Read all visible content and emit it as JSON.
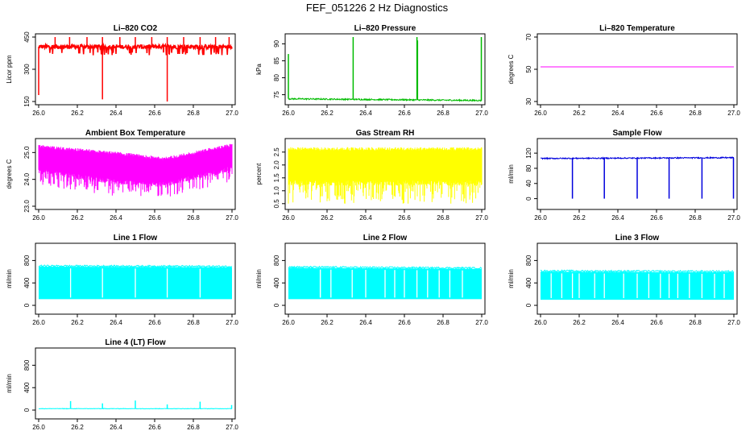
{
  "figure_title": "FEF_051226  2 Hz Diagnostics",
  "chart_data": [
    {
      "type": "line",
      "title": "Li–820 CO2",
      "ylabel": "Licor ppm",
      "xlim": [
        26.0,
        27.0
      ],
      "ylim": [
        150,
        450
      ],
      "xticks": [
        26.0,
        26.2,
        26.4,
        26.6,
        26.8,
        27.0
      ],
      "xtick_labels": [
        "26.0",
        "26.2",
        "26.4",
        "26.6",
        "26.8",
        "27.0"
      ],
      "yticks": [
        150,
        300,
        450
      ],
      "ytick_labels": [
        "150",
        "300",
        "450"
      ],
      "color": "#ff0000",
      "style": "noisy",
      "base": [
        405,
        405
      ],
      "noise": 10,
      "floor_val": 380,
      "floor_frac": 0.08,
      "spikes": [
        {
          "x": 26.0,
          "v": 180
        },
        {
          "x": 26.085,
          "v": 480
        },
        {
          "x": 26.16,
          "v": 480
        },
        {
          "x": 26.25,
          "v": 480
        },
        {
          "x": 26.33,
          "v": 160
        },
        {
          "x": 26.33,
          "v": 480
        },
        {
          "x": 26.42,
          "v": 480
        },
        {
          "x": 26.5,
          "v": 480
        },
        {
          "x": 26.585,
          "v": 480
        },
        {
          "x": 26.665,
          "v": 150
        },
        {
          "x": 26.665,
          "v": 480
        },
        {
          "x": 26.75,
          "v": 480
        },
        {
          "x": 26.835,
          "v": 480
        },
        {
          "x": 26.915,
          "v": 480
        },
        {
          "x": 26.985,
          "v": 480
        }
      ]
    },
    {
      "type": "line",
      "title": "Li–820 Pressure",
      "ylabel": "kPa",
      "xlim": [
        26.0,
        27.0
      ],
      "ylim": [
        73,
        92
      ],
      "xticks": [
        26.0,
        26.2,
        26.4,
        26.6,
        26.8,
        27.0
      ],
      "xtick_labels": [
        "26.0",
        "26.2",
        "26.4",
        "26.6",
        "26.8",
        "27.0"
      ],
      "yticks": [
        75,
        80,
        85,
        90
      ],
      "ytick_labels": [
        "75",
        "80",
        "85",
        "90"
      ],
      "color": "#00bb00",
      "style": "line",
      "base": [
        73.8,
        73.3
      ],
      "noise": 0.2,
      "spikes": [
        {
          "x": 26.0,
          "v": 87
        },
        {
          "x": 26.335,
          "v": 93
        },
        {
          "x": 26.665,
          "v": 93
        },
        {
          "x": 26.668,
          "v": 91
        },
        {
          "x": 26.998,
          "v": 92
        }
      ]
    },
    {
      "type": "line",
      "title": "Li–820 Temperature",
      "ylabel": "degrees C",
      "xlim": [
        26.0,
        27.0
      ],
      "ylim": [
        30,
        70
      ],
      "xticks": [
        26.0,
        26.2,
        26.4,
        26.6,
        26.8,
        27.0
      ],
      "xtick_labels": [
        "26.0",
        "26.2",
        "26.4",
        "26.6",
        "26.8",
        "27.0"
      ],
      "yticks": [
        30,
        50,
        70
      ],
      "ytick_labels": [
        "30",
        "50",
        "70"
      ],
      "color": "#ff00ff",
      "style": "line",
      "base": [
        51.5,
        51.5
      ],
      "noise": 0,
      "spikes": []
    },
    {
      "type": "line",
      "title": "Ambient Box Temperature",
      "ylabel": "degrees C",
      "xlim": [
        26.0,
        27.0
      ],
      "ylim": [
        23,
        25.4
      ],
      "xticks": [
        26.0,
        26.2,
        26.4,
        26.6,
        26.8,
        27.0
      ],
      "xtick_labels": [
        "26.0",
        "26.2",
        "26.4",
        "26.6",
        "26.8",
        "27.0"
      ],
      "yticks": [
        23.0,
        24.0,
        25.0
      ],
      "ytick_labels": [
        "23.0",
        "24.0",
        "25.0"
      ],
      "color": "#ff00ff",
      "style": "band",
      "band_top": [
        [
          26.0,
          25.2
        ],
        [
          26.4,
          24.95
        ],
        [
          26.65,
          24.75
        ],
        [
          27.0,
          25.25
        ]
      ],
      "band_bot": [
        [
          26.0,
          24.3
        ],
        [
          26.4,
          23.9
        ],
        [
          26.65,
          23.8
        ],
        [
          27.0,
          24.4
        ]
      ],
      "deep": [
        [
          26.0,
          23.8
        ],
        [
          26.4,
          23.3
        ],
        [
          26.65,
          23.3
        ],
        [
          27.0,
          23.9
        ]
      ]
    },
    {
      "type": "line",
      "title": "Gas Stream RH",
      "ylabel": "percent",
      "xlim": [
        26.0,
        27.0
      ],
      "ylim": [
        0.4,
        2.9
      ],
      "xticks": [
        26.0,
        26.2,
        26.4,
        26.6,
        26.8,
        27.0
      ],
      "xtick_labels": [
        "26.0",
        "26.2",
        "26.4",
        "26.6",
        "26.8",
        "27.0"
      ],
      "yticks": [
        0.5,
        1.0,
        1.5,
        2.0,
        2.5
      ],
      "ytick_labels": [
        "0.5",
        "1.0",
        "1.5",
        "2.0",
        "2.5"
      ],
      "color": "#ffff00",
      "style": "band",
      "band_top": [
        [
          26.0,
          2.6
        ],
        [
          27.0,
          2.6
        ]
      ],
      "band_bot": [
        [
          26.0,
          1.3
        ],
        [
          27.0,
          1.3
        ]
      ],
      "deep": [
        [
          26.0,
          0.5
        ],
        [
          27.0,
          0.5
        ]
      ]
    },
    {
      "type": "line",
      "title": "Sample Flow",
      "ylabel": "ml/min",
      "xlim": [
        26.0,
        27.0
      ],
      "ylim": [
        -20,
        150
      ],
      "xticks": [
        26.0,
        26.2,
        26.4,
        26.6,
        26.8,
        27.0
      ],
      "xtick_labels": [
        "26.0",
        "26.2",
        "26.4",
        "26.6",
        "26.8",
        "27.0"
      ],
      "yticks": [
        0,
        40,
        80,
        120
      ],
      "ytick_labels": [
        "0",
        "40",
        "80",
        "120"
      ],
      "color": "#0000dd",
      "style": "line",
      "base": [
        106,
        108
      ],
      "noise": 1.5,
      "dips": [
        26.165,
        26.33,
        26.5,
        26.665,
        26.835,
        26.998
      ],
      "dip_val": 0
    },
    {
      "type": "line",
      "title": "Line 1 Flow",
      "ylabel": "ml/min",
      "xlim": [
        26.0,
        27.0
      ],
      "ylim": [
        -100,
        1050
      ],
      "xticks": [
        26.0,
        26.2,
        26.4,
        26.6,
        26.8,
        27.0
      ],
      "xtick_labels": [
        "26.0",
        "26.2",
        "26.4",
        "26.6",
        "26.8",
        "27.0"
      ],
      "yticks": [
        0,
        400,
        800
      ],
      "ytick_labels": [
        "0",
        "400",
        "800"
      ],
      "color": "#00ffff",
      "style": "block",
      "top": [
        690,
        680
      ],
      "bot": [
        110,
        110
      ],
      "gaps": [
        26.165,
        26.33,
        26.5,
        26.665,
        26.835
      ]
    },
    {
      "type": "line",
      "title": "Line 2 Flow",
      "ylabel": "ml/min",
      "xlim": [
        26.0,
        27.0
      ],
      "ylim": [
        -100,
        1050
      ],
      "xticks": [
        26.0,
        26.2,
        26.4,
        26.6,
        26.8,
        27.0
      ],
      "xtick_labels": [
        "26.0",
        "26.2",
        "26.4",
        "26.6",
        "26.8",
        "27.0"
      ],
      "yticks": [
        0,
        400,
        800
      ],
      "ytick_labels": [
        "0",
        "400",
        "800"
      ],
      "color": "#00ffff",
      "style": "block",
      "top": [
        670,
        650
      ],
      "bot": [
        110,
        110
      ],
      "gaps": [
        26.165,
        26.33,
        26.5,
        26.665,
        26.835,
        26.165,
        26.22,
        26.4,
        26.55,
        26.6,
        26.72,
        26.78,
        26.9
      ]
    },
    {
      "type": "line",
      "title": "Line 3 Flow",
      "ylabel": "ml/min",
      "xlim": [
        26.0,
        27.0
      ],
      "ylim": [
        -100,
        1050
      ],
      "xticks": [
        26.0,
        26.2,
        26.4,
        26.6,
        26.8,
        27.0
      ],
      "xtick_labels": [
        "26.0",
        "26.2",
        "26.4",
        "26.6",
        "26.8",
        "27.0"
      ],
      "yticks": [
        0,
        400,
        800
      ],
      "ytick_labels": [
        "0",
        "400",
        "800"
      ],
      "color": "#00ffff",
      "style": "block",
      "top": [
        600,
        590
      ],
      "bot": [
        100,
        100
      ],
      "gaps": [
        26.165,
        26.33,
        26.5,
        26.665,
        26.835,
        26.055,
        26.11,
        26.2,
        26.28,
        26.43,
        26.56,
        26.62,
        26.71,
        26.77,
        26.9,
        26.95
      ]
    },
    {
      "type": "line",
      "title": "Line 4 (LT) Flow",
      "ylabel": "ml/min",
      "xlim": [
        26.0,
        27.0
      ],
      "ylim": [
        -100,
        1050
      ],
      "xticks": [
        26.0,
        26.2,
        26.4,
        26.6,
        26.8,
        27.0
      ],
      "xtick_labels": [
        "26.0",
        "26.2",
        "26.4",
        "26.6",
        "26.8",
        "27.0"
      ],
      "yticks": [
        0,
        400,
        800
      ],
      "ytick_labels": [
        "0",
        "400",
        "800"
      ],
      "color": "#00ffff",
      "style": "line",
      "base": [
        25,
        25
      ],
      "noise": 4,
      "spikes": [
        {
          "x": 26.165,
          "v": 160
        },
        {
          "x": 26.33,
          "v": 120
        },
        {
          "x": 26.5,
          "v": 170
        },
        {
          "x": 26.665,
          "v": 100
        },
        {
          "x": 26.835,
          "v": 150
        },
        {
          "x": 26.998,
          "v": 90
        }
      ]
    }
  ]
}
